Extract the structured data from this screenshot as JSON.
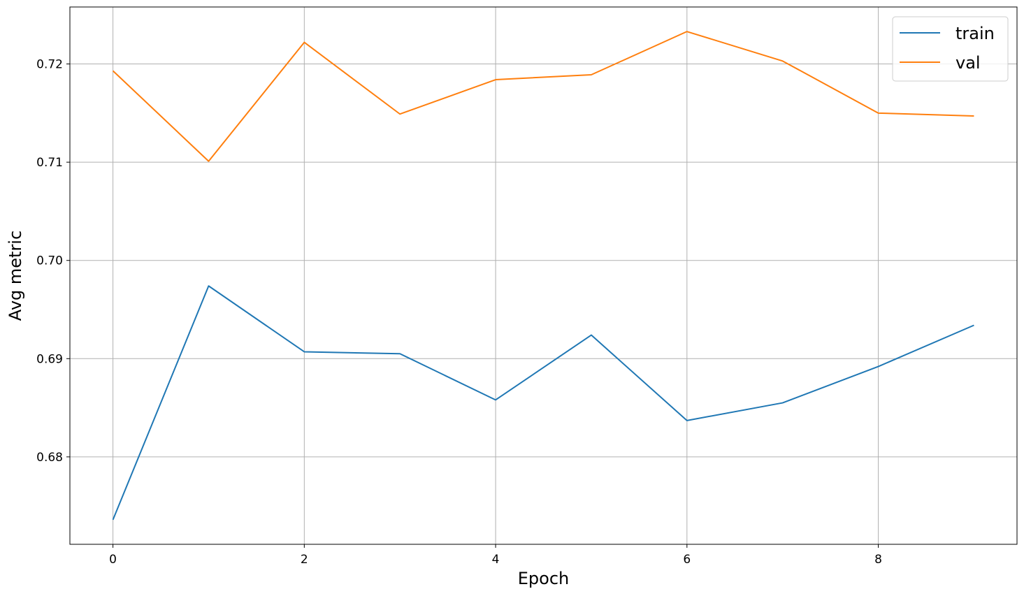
{
  "chart_data": {
    "type": "line",
    "title": "",
    "xlabel": "Epoch",
    "ylabel": "Avg metric",
    "x": [
      0,
      1,
      2,
      3,
      4,
      5,
      6,
      7,
      8,
      9
    ],
    "xlim": [
      -0.45,
      9.45
    ],
    "ylim": [
      0.6711,
      0.7258
    ],
    "x_ticks": [
      0,
      2,
      4,
      6,
      8
    ],
    "x_tick_labels": [
      "0",
      "2",
      "4",
      "6",
      "8"
    ],
    "y_ticks": [
      0.68,
      0.69,
      0.7,
      0.71,
      0.72
    ],
    "y_tick_labels": [
      "0.68",
      "0.69",
      "0.70",
      "0.71",
      "0.72"
    ],
    "grid": true,
    "legend_position": "top-right",
    "series": [
      {
        "name": "train",
        "color": "#1f77b4",
        "values": [
          0.6736,
          0.6974,
          0.6907,
          0.6905,
          0.6858,
          0.6924,
          0.6837,
          0.6855,
          0.6892,
          0.6934
        ]
      },
      {
        "name": "val",
        "color": "#ff7f0e",
        "values": [
          0.7193,
          0.7101,
          0.7222,
          0.7149,
          0.7184,
          0.7189,
          0.7233,
          0.7203,
          0.715,
          0.7147
        ]
      }
    ]
  }
}
